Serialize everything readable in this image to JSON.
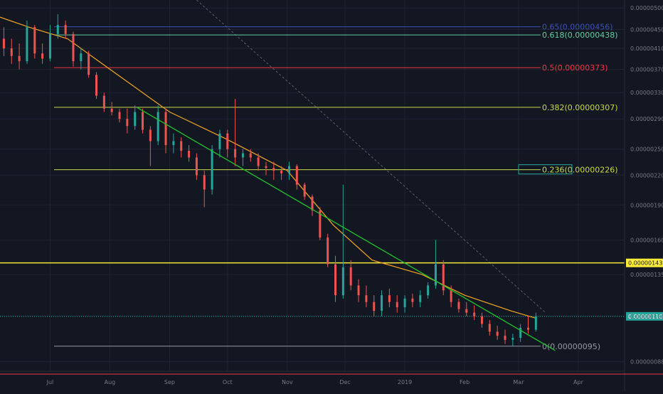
{
  "chart_data": {
    "type": "candlestick",
    "background": "#131722",
    "grid": true,
    "y_scale": "log",
    "price_axis": {
      "ticks": [
        "0.00000500",
        "0.00000450",
        "0.00000410",
        "0.00000370",
        "0.00000330",
        "0.00000290",
        "0.00000250",
        "0.00000220",
        "0.00000190",
        "0.00000160",
        "0.00000135",
        "0.00000110",
        "0.00000088"
      ],
      "ylim": [
        8.4e-07,
        5.2e-06
      ]
    },
    "time_axis": {
      "ticks": [
        "Jul",
        "Aug",
        "Sep",
        "Oct",
        "Nov",
        "Dec",
        "2019",
        "Feb",
        "Mar",
        "Apr"
      ],
      "xlim": [
        "2018-06-05",
        "2019-04-25"
      ]
    },
    "fibonacci_levels": [
      {
        "label": "0.65(0.00000456)",
        "ratio": 0.65,
        "price": 4.56e-06,
        "color": "#3f51b5"
      },
      {
        "label": "0.618(0.00000438)",
        "ratio": 0.618,
        "price": 4.38e-06,
        "color": "#5fd0a0"
      },
      {
        "label": "0.5(0.00000373)",
        "ratio": 0.5,
        "price": 3.73e-06,
        "color": "#f23645"
      },
      {
        "label": "0.382(0.00000307)",
        "ratio": 0.382,
        "price": 3.07e-06,
        "color": "#c7d94a"
      },
      {
        "label": "0.236(0.00000226)",
        "ratio": 0.236,
        "price": 2.26e-06,
        "color": "#c7d94a"
      },
      {
        "label": "0(0.00000095)",
        "ratio": 0,
        "price": 9.5e-07,
        "color": "#9598a1"
      }
    ],
    "horizontal_lines": [
      {
        "price": 1.43e-06,
        "label": "0.00000143",
        "color": "#ffeb3b"
      }
    ],
    "last_price": {
      "price": 1.1e-06,
      "label": "0.00000110",
      "color": "#26a69a"
    },
    "moving_average": {
      "color": "#f5a623",
      "points": [
        [
          "2018-06-05",
          4.78e-06
        ],
        [
          "2018-06-20",
          4.55e-06
        ],
        [
          "2018-07-10",
          4.3e-06
        ],
        [
          "2018-08-01",
          3.7e-06
        ],
        [
          "2018-09-01",
          3e-06
        ],
        [
          "2018-10-01",
          2.62e-06
        ],
        [
          "2018-11-01",
          2.25e-06
        ],
        [
          "2018-11-25",
          1.72e-06
        ],
        [
          "2018-12-15",
          1.45e-06
        ],
        [
          "2019-01-10",
          1.35e-06
        ],
        [
          "2019-02-01",
          1.22e-06
        ],
        [
          "2019-02-25",
          1.13e-06
        ],
        [
          "2019-03-10",
          1.09e-06
        ]
      ]
    },
    "trendline": {
      "color": "#22c32e",
      "start": [
        "2018-08-15",
        3.07e-06
      ],
      "end": [
        "2019-03-20",
        9.3e-07
      ]
    },
    "diagonal_dashed": {
      "color": "#5d606b",
      "start": [
        "2018-09-15",
        5.2e-06
      ],
      "end": [
        "2019-03-15",
        1.12e-06
      ]
    },
    "candles": [
      {
        "d": "2018-06-07",
        "o": 4.3e-06,
        "h": 4.55e-06,
        "l": 3.95e-06,
        "c": 4.1e-06
      },
      {
        "d": "2018-06-11",
        "o": 4.1e-06,
        "h": 4.3e-06,
        "l": 3.8e-06,
        "c": 3.95e-06
      },
      {
        "d": "2018-06-15",
        "o": 3.95e-06,
        "h": 4.2e-06,
        "l": 3.7e-06,
        "c": 3.85e-06
      },
      {
        "d": "2018-06-19",
        "o": 3.85e-06,
        "h": 4.7e-06,
        "l": 3.8e-06,
        "c": 4.55e-06
      },
      {
        "d": "2018-06-23",
        "o": 4.55e-06,
        "h": 4.6e-06,
        "l": 3.9e-06,
        "c": 4e-06
      },
      {
        "d": "2018-06-27",
        "o": 4e-06,
        "h": 4.2e-06,
        "l": 3.8e-06,
        "c": 3.9e-06
      },
      {
        "d": "2018-07-01",
        "o": 3.9e-06,
        "h": 4.6e-06,
        "l": 3.85e-06,
        "c": 4.4e-06
      },
      {
        "d": "2018-07-05",
        "o": 4.4e-06,
        "h": 4.85e-06,
        "l": 4.3e-06,
        "c": 4.6e-06
      },
      {
        "d": "2018-07-09",
        "o": 4.6e-06,
        "h": 4.7e-06,
        "l": 4.3e-06,
        "c": 4.4e-06
      },
      {
        "d": "2018-07-13",
        "o": 4.4e-06,
        "h": 4.45e-06,
        "l": 3.75e-06,
        "c": 3.85e-06
      },
      {
        "d": "2018-07-17",
        "o": 3.85e-06,
        "h": 4.1e-06,
        "l": 3.7e-06,
        "c": 4e-06
      },
      {
        "d": "2018-07-21",
        "o": 4e-06,
        "h": 4.05e-06,
        "l": 3.55e-06,
        "c": 3.6e-06
      },
      {
        "d": "2018-07-25",
        "o": 3.6e-06,
        "h": 3.65e-06,
        "l": 3.2e-06,
        "c": 3.25e-06
      },
      {
        "d": "2018-07-29",
        "o": 3.25e-06,
        "h": 3.3e-06,
        "l": 3e-06,
        "c": 3.05e-06
      },
      {
        "d": "2018-08-02",
        "o": 3.05e-06,
        "h": 3.15e-06,
        "l": 2.95e-06,
        "c": 3e-06
      },
      {
        "d": "2018-08-06",
        "o": 3e-06,
        "h": 3.05e-06,
        "l": 2.85e-06,
        "c": 2.9e-06
      },
      {
        "d": "2018-08-10",
        "o": 2.9e-06,
        "h": 3.05e-06,
        "l": 2.7e-06,
        "c": 2.8e-06
      },
      {
        "d": "2018-08-14",
        "o": 2.8e-06,
        "h": 3.1e-06,
        "l": 2.75e-06,
        "c": 3e-06
      },
      {
        "d": "2018-08-18",
        "o": 3e-06,
        "h": 3.05e-06,
        "l": 2.7e-06,
        "c": 2.75e-06
      },
      {
        "d": "2018-08-22",
        "o": 2.75e-06,
        "h": 2.8e-06,
        "l": 2.3e-06,
        "c": 2.6e-06
      },
      {
        "d": "2018-08-26",
        "o": 2.6e-06,
        "h": 3.1e-06,
        "l": 2.55e-06,
        "c": 3e-06
      },
      {
        "d": "2018-08-30",
        "o": 3e-06,
        "h": 3.05e-06,
        "l": 2.45e-06,
        "c": 2.55e-06
      },
      {
        "d": "2018-09-03",
        "o": 2.55e-06,
        "h": 2.7e-06,
        "l": 2.45e-06,
        "c": 2.6e-06
      },
      {
        "d": "2018-09-07",
        "o": 2.6e-06,
        "h": 2.65e-06,
        "l": 2.4e-06,
        "c": 2.48e-06
      },
      {
        "d": "2018-09-11",
        "o": 2.48e-06,
        "h": 2.55e-06,
        "l": 2.35e-06,
        "c": 2.4e-06
      },
      {
        "d": "2018-09-15",
        "o": 2.4e-06,
        "h": 2.45e-06,
        "l": 2.15e-06,
        "c": 2.2e-06
      },
      {
        "d": "2018-09-19",
        "o": 2.2e-06,
        "h": 2.25e-06,
        "l": 1.88e-06,
        "c": 2.05e-06
      },
      {
        "d": "2018-09-23",
        "o": 2.05e-06,
        "h": 2.55e-06,
        "l": 2e-06,
        "c": 2.5e-06
      },
      {
        "d": "2018-09-27",
        "o": 2.5e-06,
        "h": 2.75e-06,
        "l": 2.4e-06,
        "c": 2.7e-06
      },
      {
        "d": "2018-10-01",
        "o": 2.7e-06,
        "h": 2.75e-06,
        "l": 2.4e-06,
        "c": 2.5e-06
      },
      {
        "d": "2018-10-05",
        "o": 2.5e-06,
        "h": 3.2e-06,
        "l": 2.3e-06,
        "c": 2.4e-06
      },
      {
        "d": "2018-10-09",
        "o": 2.4e-06,
        "h": 2.5e-06,
        "l": 2.3e-06,
        "c": 2.45e-06
      },
      {
        "d": "2018-10-13",
        "o": 2.45e-06,
        "h": 2.5e-06,
        "l": 2.35e-06,
        "c": 2.4e-06
      },
      {
        "d": "2018-10-17",
        "o": 2.4e-06,
        "h": 2.45e-06,
        "l": 2.25e-06,
        "c": 2.3e-06
      },
      {
        "d": "2018-10-21",
        "o": 2.3e-06,
        "h": 2.35e-06,
        "l": 2.2e-06,
        "c": 2.28e-06
      },
      {
        "d": "2018-10-25",
        "o": 2.28e-06,
        "h": 2.35e-06,
        "l": 2.15e-06,
        "c": 2.25e-06
      },
      {
        "d": "2018-10-29",
        "o": 2.25e-06,
        "h": 2.3e-06,
        "l": 2.15e-06,
        "c": 2.22e-06
      },
      {
        "d": "2018-11-02",
        "o": 2.22e-06,
        "h": 2.35e-06,
        "l": 2.15e-06,
        "c": 2.3e-06
      },
      {
        "d": "2018-11-06",
        "o": 2.3e-06,
        "h": 2.32e-06,
        "l": 2.05e-06,
        "c": 2.1e-06
      },
      {
        "d": "2018-11-10",
        "o": 2.1e-06,
        "h": 2.12e-06,
        "l": 1.95e-06,
        "c": 1.98e-06
      },
      {
        "d": "2018-11-14",
        "o": 1.98e-06,
        "h": 2e-06,
        "l": 1.8e-06,
        "c": 1.85e-06
      },
      {
        "d": "2018-11-18",
        "o": 1.85e-06,
        "h": 1.88e-06,
        "l": 1.6e-06,
        "c": 1.62e-06
      },
      {
        "d": "2018-11-22",
        "o": 1.62e-06,
        "h": 1.65e-06,
        "l": 1.4e-06,
        "c": 1.42e-06
      },
      {
        "d": "2018-11-26",
        "o": 1.42e-06,
        "h": 1.48e-06,
        "l": 1.18e-06,
        "c": 1.22e-06
      },
      {
        "d": "2018-11-30",
        "o": 1.22e-06,
        "h": 2.1e-06,
        "l": 1.2e-06,
        "c": 1.4e-06
      },
      {
        "d": "2018-12-04",
        "o": 1.4e-06,
        "h": 1.45e-06,
        "l": 1.25e-06,
        "c": 1.28e-06
      },
      {
        "d": "2018-12-08",
        "o": 1.28e-06,
        "h": 1.32e-06,
        "l": 1.18e-06,
        "c": 1.22e-06
      },
      {
        "d": "2018-12-12",
        "o": 1.22e-06,
        "h": 1.28e-06,
        "l": 1.15e-06,
        "c": 1.18e-06
      },
      {
        "d": "2018-12-16",
        "o": 1.18e-06,
        "h": 1.22e-06,
        "l": 1.1e-06,
        "c": 1.13e-06
      },
      {
        "d": "2018-12-20",
        "o": 1.13e-06,
        "h": 1.25e-06,
        "l": 1.1e-06,
        "c": 1.22e-06
      },
      {
        "d": "2018-12-24",
        "o": 1.22e-06,
        "h": 1.26e-06,
        "l": 1.15e-06,
        "c": 1.18e-06
      },
      {
        "d": "2018-12-28",
        "o": 1.18e-06,
        "h": 1.22e-06,
        "l": 1.12e-06,
        "c": 1.15e-06
      },
      {
        "d": "2019-01-01",
        "o": 1.15e-06,
        "h": 1.22e-06,
        "l": 1.12e-06,
        "c": 1.2e-06
      },
      {
        "d": "2019-01-05",
        "o": 1.2e-06,
        "h": 1.23e-06,
        "l": 1.15e-06,
        "c": 1.18e-06
      },
      {
        "d": "2019-01-09",
        "o": 1.18e-06,
        "h": 1.25e-06,
        "l": 1.15e-06,
        "c": 1.22e-06
      },
      {
        "d": "2019-01-13",
        "o": 1.22e-06,
        "h": 1.3e-06,
        "l": 1.2e-06,
        "c": 1.28e-06
      },
      {
        "d": "2019-01-17",
        "o": 1.28e-06,
        "h": 1.6e-06,
        "l": 1.26e-06,
        "c": 1.42e-06
      },
      {
        "d": "2019-01-21",
        "o": 1.42e-06,
        "h": 1.45e-06,
        "l": 1.22e-06,
        "c": 1.25e-06
      },
      {
        "d": "2019-01-25",
        "o": 1.25e-06,
        "h": 1.28e-06,
        "l": 1.15e-06,
        "c": 1.18e-06
      },
      {
        "d": "2019-01-29",
        "o": 1.18e-06,
        "h": 1.2e-06,
        "l": 1.12e-06,
        "c": 1.14e-06
      },
      {
        "d": "2019-02-02",
        "o": 1.14e-06,
        "h": 1.18e-06,
        "l": 1.1e-06,
        "c": 1.12e-06
      },
      {
        "d": "2019-02-06",
        "o": 1.12e-06,
        "h": 1.16e-06,
        "l": 1.08e-06,
        "c": 1.1e-06
      },
      {
        "d": "2019-02-10",
        "o": 1.1e-06,
        "h": 1.12e-06,
        "l": 1.04e-06,
        "c": 1.06e-06
      },
      {
        "d": "2019-02-14",
        "o": 1.06e-06,
        "h": 1.08e-06,
        "l": 1e-06,
        "c": 1.02e-06
      },
      {
        "d": "2019-02-18",
        "o": 1.02e-06,
        "h": 1.05e-06,
        "l": 9.8e-07,
        "c": 1e-06
      },
      {
        "d": "2019-02-22",
        "o": 1e-06,
        "h": 1.03e-06,
        "l": 9.6e-07,
        "c": 9.8e-07
      },
      {
        "d": "2019-02-26",
        "o": 9.8e-07,
        "h": 1.01e-06,
        "l": 9.5e-07,
        "c": 9.9e-07
      },
      {
        "d": "2019-03-02",
        "o": 9.9e-07,
        "h": 1.06e-06,
        "l": 9.7e-07,
        "c": 1.04e-06
      },
      {
        "d": "2019-03-06",
        "o": 1.04e-06,
        "h": 1.1e-06,
        "l": 1.01e-06,
        "c": 1.03e-06
      },
      {
        "d": "2019-03-10",
        "o": 1.03e-06,
        "h": 1.12e-06,
        "l": 1.02e-06,
        "c": 1.1e-06
      }
    ]
  }
}
